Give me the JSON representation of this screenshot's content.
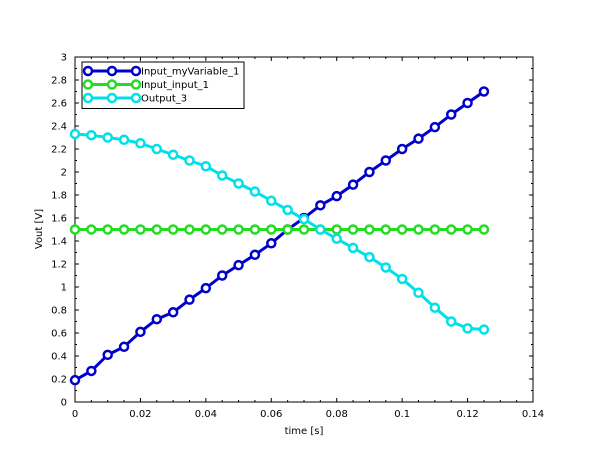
{
  "chart_data": {
    "type": "line",
    "title": "",
    "xlabel": "time [s]",
    "ylabel": "Vout [V]",
    "xlim": [
      0,
      0.14
    ],
    "ylim": [
      0,
      3
    ],
    "xticks": [
      0,
      0.02,
      0.04,
      0.06,
      0.08,
      0.1,
      0.12,
      0.14
    ],
    "xtick_labels": [
      "0",
      "0.02",
      "0.04",
      "0.06",
      "0.08",
      "0.1",
      "0.12",
      "0.14"
    ],
    "yticks": [
      0,
      0.2,
      0.4,
      0.6,
      0.8,
      1,
      1.2,
      1.4,
      1.6,
      1.8,
      2,
      2.2,
      2.4,
      2.6,
      2.8,
      3
    ],
    "ytick_labels": [
      "0",
      "0.2",
      "0.4",
      "0.6",
      "0.8",
      "1",
      "1.2",
      "1.4",
      "1.6",
      "1.8",
      "2",
      "2.2",
      "2.4",
      "2.6",
      "2.8",
      "3"
    ],
    "grid": false,
    "legend_position": "top-left",
    "x": [
      0,
      0.005,
      0.01,
      0.015,
      0.02,
      0.025,
      0.03,
      0.035,
      0.04,
      0.045,
      0.05,
      0.055,
      0.06,
      0.065,
      0.07,
      0.075,
      0.08,
      0.085,
      0.09,
      0.095,
      0.1,
      0.105,
      0.11,
      0.115,
      0.12,
      0.125
    ],
    "series": [
      {
        "name": "Input_myVariable_1",
        "color": "#0000cc",
        "values": [
          0.19,
          0.27,
          0.41,
          0.48,
          0.61,
          0.72,
          0.78,
          0.89,
          0.99,
          1.1,
          1.19,
          1.28,
          1.38,
          1.5,
          1.6,
          1.71,
          1.79,
          1.89,
          2.0,
          2.1,
          2.2,
          2.29,
          2.39,
          2.5,
          2.6,
          2.7
        ]
      },
      {
        "name": "Input_input_1",
        "color": "#22dd22",
        "values": [
          1.5,
          1.5,
          1.5,
          1.5,
          1.5,
          1.5,
          1.5,
          1.5,
          1.5,
          1.5,
          1.5,
          1.5,
          1.5,
          1.5,
          1.5,
          1.5,
          1.5,
          1.5,
          1.5,
          1.5,
          1.5,
          1.5,
          1.5,
          1.5,
          1.5,
          1.5
        ]
      },
      {
        "name": "Output_3",
        "color": "#00e0e8",
        "values": [
          2.33,
          2.32,
          2.3,
          2.28,
          2.25,
          2.2,
          2.15,
          2.1,
          2.05,
          1.97,
          1.9,
          1.83,
          1.75,
          1.67,
          1.59,
          1.5,
          1.42,
          1.34,
          1.26,
          1.17,
          1.07,
          0.95,
          0.82,
          0.7,
          0.64,
          0.63
        ]
      }
    ]
  }
}
